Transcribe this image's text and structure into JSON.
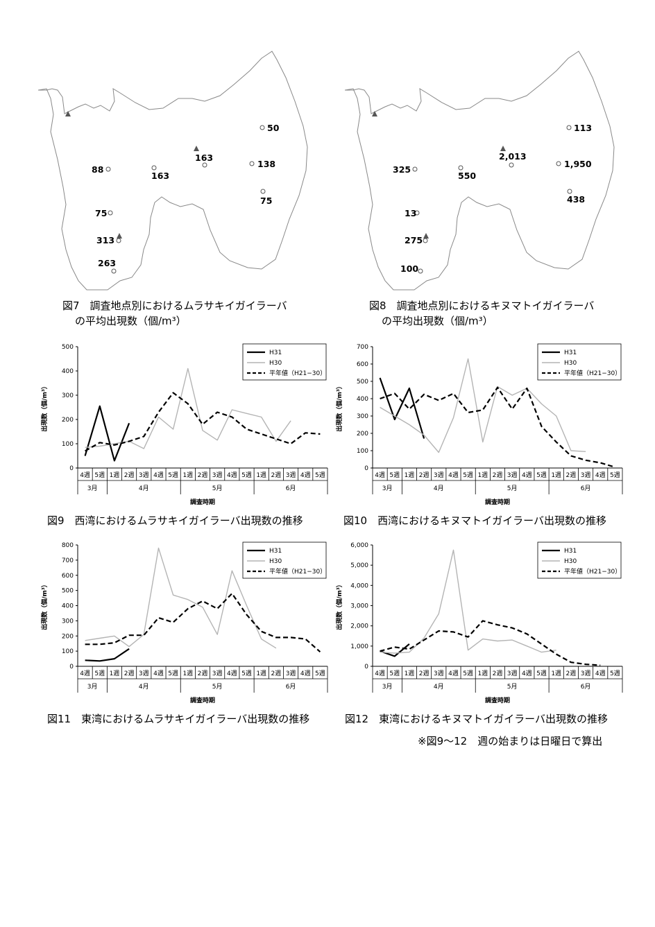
{
  "maps": [
    {
      "caption_line1": "図7　調査地点別におけるムラサキイガイラーバ",
      "caption_line2": "の平均出現数（個/m³）",
      "points": [
        {
          "label": "50"
        },
        {
          "label": "163"
        },
        {
          "label": "88"
        },
        {
          "label": "163"
        },
        {
          "label": "138"
        },
        {
          "label": "75"
        },
        {
          "label": "75"
        },
        {
          "label": "313"
        },
        {
          "label": "263"
        }
      ]
    },
    {
      "caption_line1": "図8　調査地点別におけるキヌマトイガイラーバ",
      "caption_line2": "の平均出現数（個/m³）",
      "points": [
        {
          "label": "113"
        },
        {
          "label": "2,013"
        },
        {
          "label": "325"
        },
        {
          "label": "550"
        },
        {
          "label": "1,950"
        },
        {
          "label": "438"
        },
        {
          "label": "13"
        },
        {
          "label": "275"
        },
        {
          "label": "100"
        }
      ]
    }
  ],
  "axis": {
    "ylabel": "出現数（個/m³）",
    "xlabel": "調査時期",
    "week_labels": [
      "4週",
      "5週",
      "1週",
      "2週",
      "3週",
      "4週",
      "5週",
      "1週",
      "2週",
      "3週",
      "4週",
      "5週",
      "1週",
      "2週",
      "3週",
      "4週",
      "5週"
    ],
    "months": [
      {
        "label": "3月",
        "start": 0,
        "end": 2
      },
      {
        "label": "4月",
        "start": 2,
        "end": 7
      },
      {
        "label": "5月",
        "start": 7,
        "end": 12
      },
      {
        "label": "6月",
        "start": 12,
        "end": 17
      }
    ]
  },
  "legend": [
    "H31",
    "H30",
    "平年値（H21−30）"
  ],
  "colors": {
    "H31": "#000000",
    "H30": "#b4b4b4",
    "avg": "#000000"
  },
  "chart_data": [
    {
      "type": "line",
      "caption": "図9　西湾におけるムラサキイガイラーバ出現数の推移",
      "ylim": [
        0,
        500
      ],
      "yticks": [
        0,
        100,
        200,
        300,
        400,
        500
      ],
      "ytick_labels": [
        "0",
        "100",
        "200",
        "300",
        "400",
        "500"
      ],
      "series": [
        {
          "name": "H31",
          "values": [
            50,
            255,
            30,
            185,
            null,
            null,
            null,
            null,
            null,
            null,
            null,
            null,
            null,
            null,
            null,
            null,
            null
          ]
        },
        {
          "name": "H30",
          "values": [
            85,
            90,
            100,
            110,
            80,
            210,
            160,
            410,
            155,
            115,
            240,
            225,
            210,
            110,
            195,
            null,
            null
          ]
        },
        {
          "name": "平年値（H21−30）",
          "values": [
            70,
            105,
            95,
            110,
            130,
            230,
            310,
            265,
            180,
            230,
            210,
            160,
            140,
            120,
            100,
            145,
            140
          ]
        }
      ]
    },
    {
      "type": "line",
      "caption": "図10　西湾におけるキヌマトイガイラーバ出現数の推移",
      "ylim": [
        0,
        700
      ],
      "yticks": [
        0,
        100,
        200,
        300,
        400,
        500,
        600,
        700
      ],
      "ytick_labels": [
        "0",
        "100",
        "200",
        "300",
        "400",
        "500",
        "600",
        "700"
      ],
      "series": [
        {
          "name": "H31",
          "values": [
            520,
            280,
            460,
            170,
            null,
            null,
            null,
            null,
            null,
            null,
            null,
            null,
            null,
            null,
            null,
            null,
            null
          ]
        },
        {
          "name": "H30",
          "values": [
            350,
            300,
            250,
            190,
            90,
            290,
            630,
            150,
            470,
            420,
            460,
            370,
            300,
            100,
            95,
            null,
            null
          ]
        },
        {
          "name": "平年値（H21−30）",
          "values": [
            400,
            430,
            340,
            425,
            390,
            430,
            320,
            335,
            465,
            340,
            460,
            240,
            150,
            70,
            45,
            30,
            5
          ]
        }
      ]
    },
    {
      "type": "line",
      "caption": "図11　東湾におけるムラサキイガイラーバ出現数の推移",
      "ylim": [
        0,
        800
      ],
      "yticks": [
        0,
        100,
        200,
        300,
        400,
        500,
        600,
        700,
        800
      ],
      "ytick_labels": [
        "0",
        "100",
        "200",
        "300",
        "400",
        "500",
        "600",
        "700",
        "800"
      ],
      "series": [
        {
          "name": "H31",
          "values": [
            40,
            35,
            50,
            115,
            null,
            null,
            null,
            null,
            null,
            null,
            null,
            null,
            null,
            null,
            null,
            null,
            null
          ]
        },
        {
          "name": "H30",
          "values": [
            170,
            185,
            200,
            130,
            210,
            780,
            470,
            440,
            390,
            210,
            630,
            400,
            180,
            120,
            null,
            null,
            null
          ]
        },
        {
          "name": "平年値（H21−30）",
          "values": [
            145,
            145,
            155,
            205,
            205,
            320,
            290,
            380,
            430,
            380,
            480,
            340,
            230,
            190,
            190,
            180,
            95
          ]
        }
      ]
    },
    {
      "type": "line",
      "caption": "図12　東湾におけるキヌマトイガイラーバ出現数の推移",
      "ylim": [
        0,
        6000
      ],
      "yticks": [
        0,
        1000,
        2000,
        3000,
        4000,
        5000,
        6000
      ],
      "ytick_labels": [
        "0",
        "1,000",
        "2,000",
        "3,000",
        "4,000",
        "5,000",
        "6,000"
      ],
      "series": [
        {
          "name": "H31",
          "values": [
            750,
            500,
            1100,
            null,
            null,
            null,
            null,
            null,
            null,
            null,
            null,
            null,
            null,
            null,
            null,
            null,
            null
          ]
        },
        {
          "name": "H30",
          "values": [
            700,
            650,
            700,
            1400,
            2600,
            5750,
            800,
            1350,
            1250,
            1300,
            1000,
            700,
            800,
            null,
            null,
            null,
            null
          ]
        },
        {
          "name": "平年値（H21−30）",
          "values": [
            750,
            950,
            850,
            1300,
            1750,
            1700,
            1450,
            2250,
            2050,
            1900,
            1600,
            1100,
            600,
            200,
            100,
            50,
            null
          ]
        }
      ]
    }
  ],
  "note": "※図9～12　週の始まりは日曜日で算出"
}
